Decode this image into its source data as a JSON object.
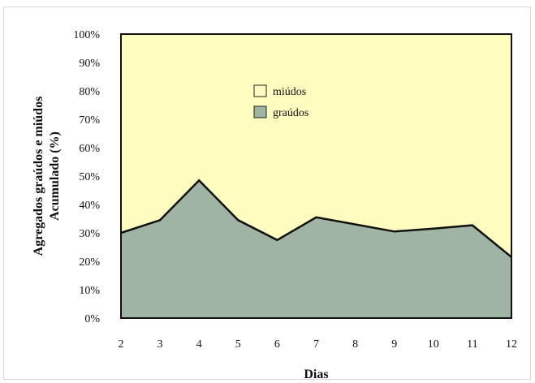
{
  "chart_data": {
    "type": "area",
    "stacked": true,
    "percent": true,
    "x": [
      2,
      3,
      4,
      5,
      6,
      7,
      8,
      9,
      10,
      11,
      12
    ],
    "x_ticks": [
      "2",
      "3",
      "4",
      "5",
      "6",
      "7",
      "8",
      "9",
      "10",
      "11",
      "12"
    ],
    "series": [
      {
        "name": "graúdos",
        "values": [
          30,
          34.5,
          48.5,
          34.5,
          27.5,
          35.5,
          33,
          30.5,
          31.5,
          32.7,
          21.5
        ],
        "color": "#9fb4a3"
      },
      {
        "name": "miúdos",
        "values": [
          70,
          65.5,
          51.5,
          65.5,
          72.5,
          64.5,
          67,
          69.5,
          68.5,
          67.3,
          78.5
        ],
        "color": "#fefcbf"
      }
    ],
    "y_ticks": [
      "0%",
      "10%",
      "20%",
      "30%",
      "40%",
      "50%",
      "60%",
      "70%",
      "80%",
      "90%",
      "100%"
    ],
    "ylim": [
      0,
      100
    ],
    "xlabel": "Dias",
    "ylabel_line1": "Agregados graúdos e miúdos",
    "ylabel_line2": "Acumulado (%)",
    "legend": {
      "placement": "top-center",
      "items": [
        {
          "label": "miúdos",
          "color": "#fefcbf"
        },
        {
          "label": "graúdos",
          "color": "#9fb4a3"
        }
      ]
    },
    "grid": false
  }
}
